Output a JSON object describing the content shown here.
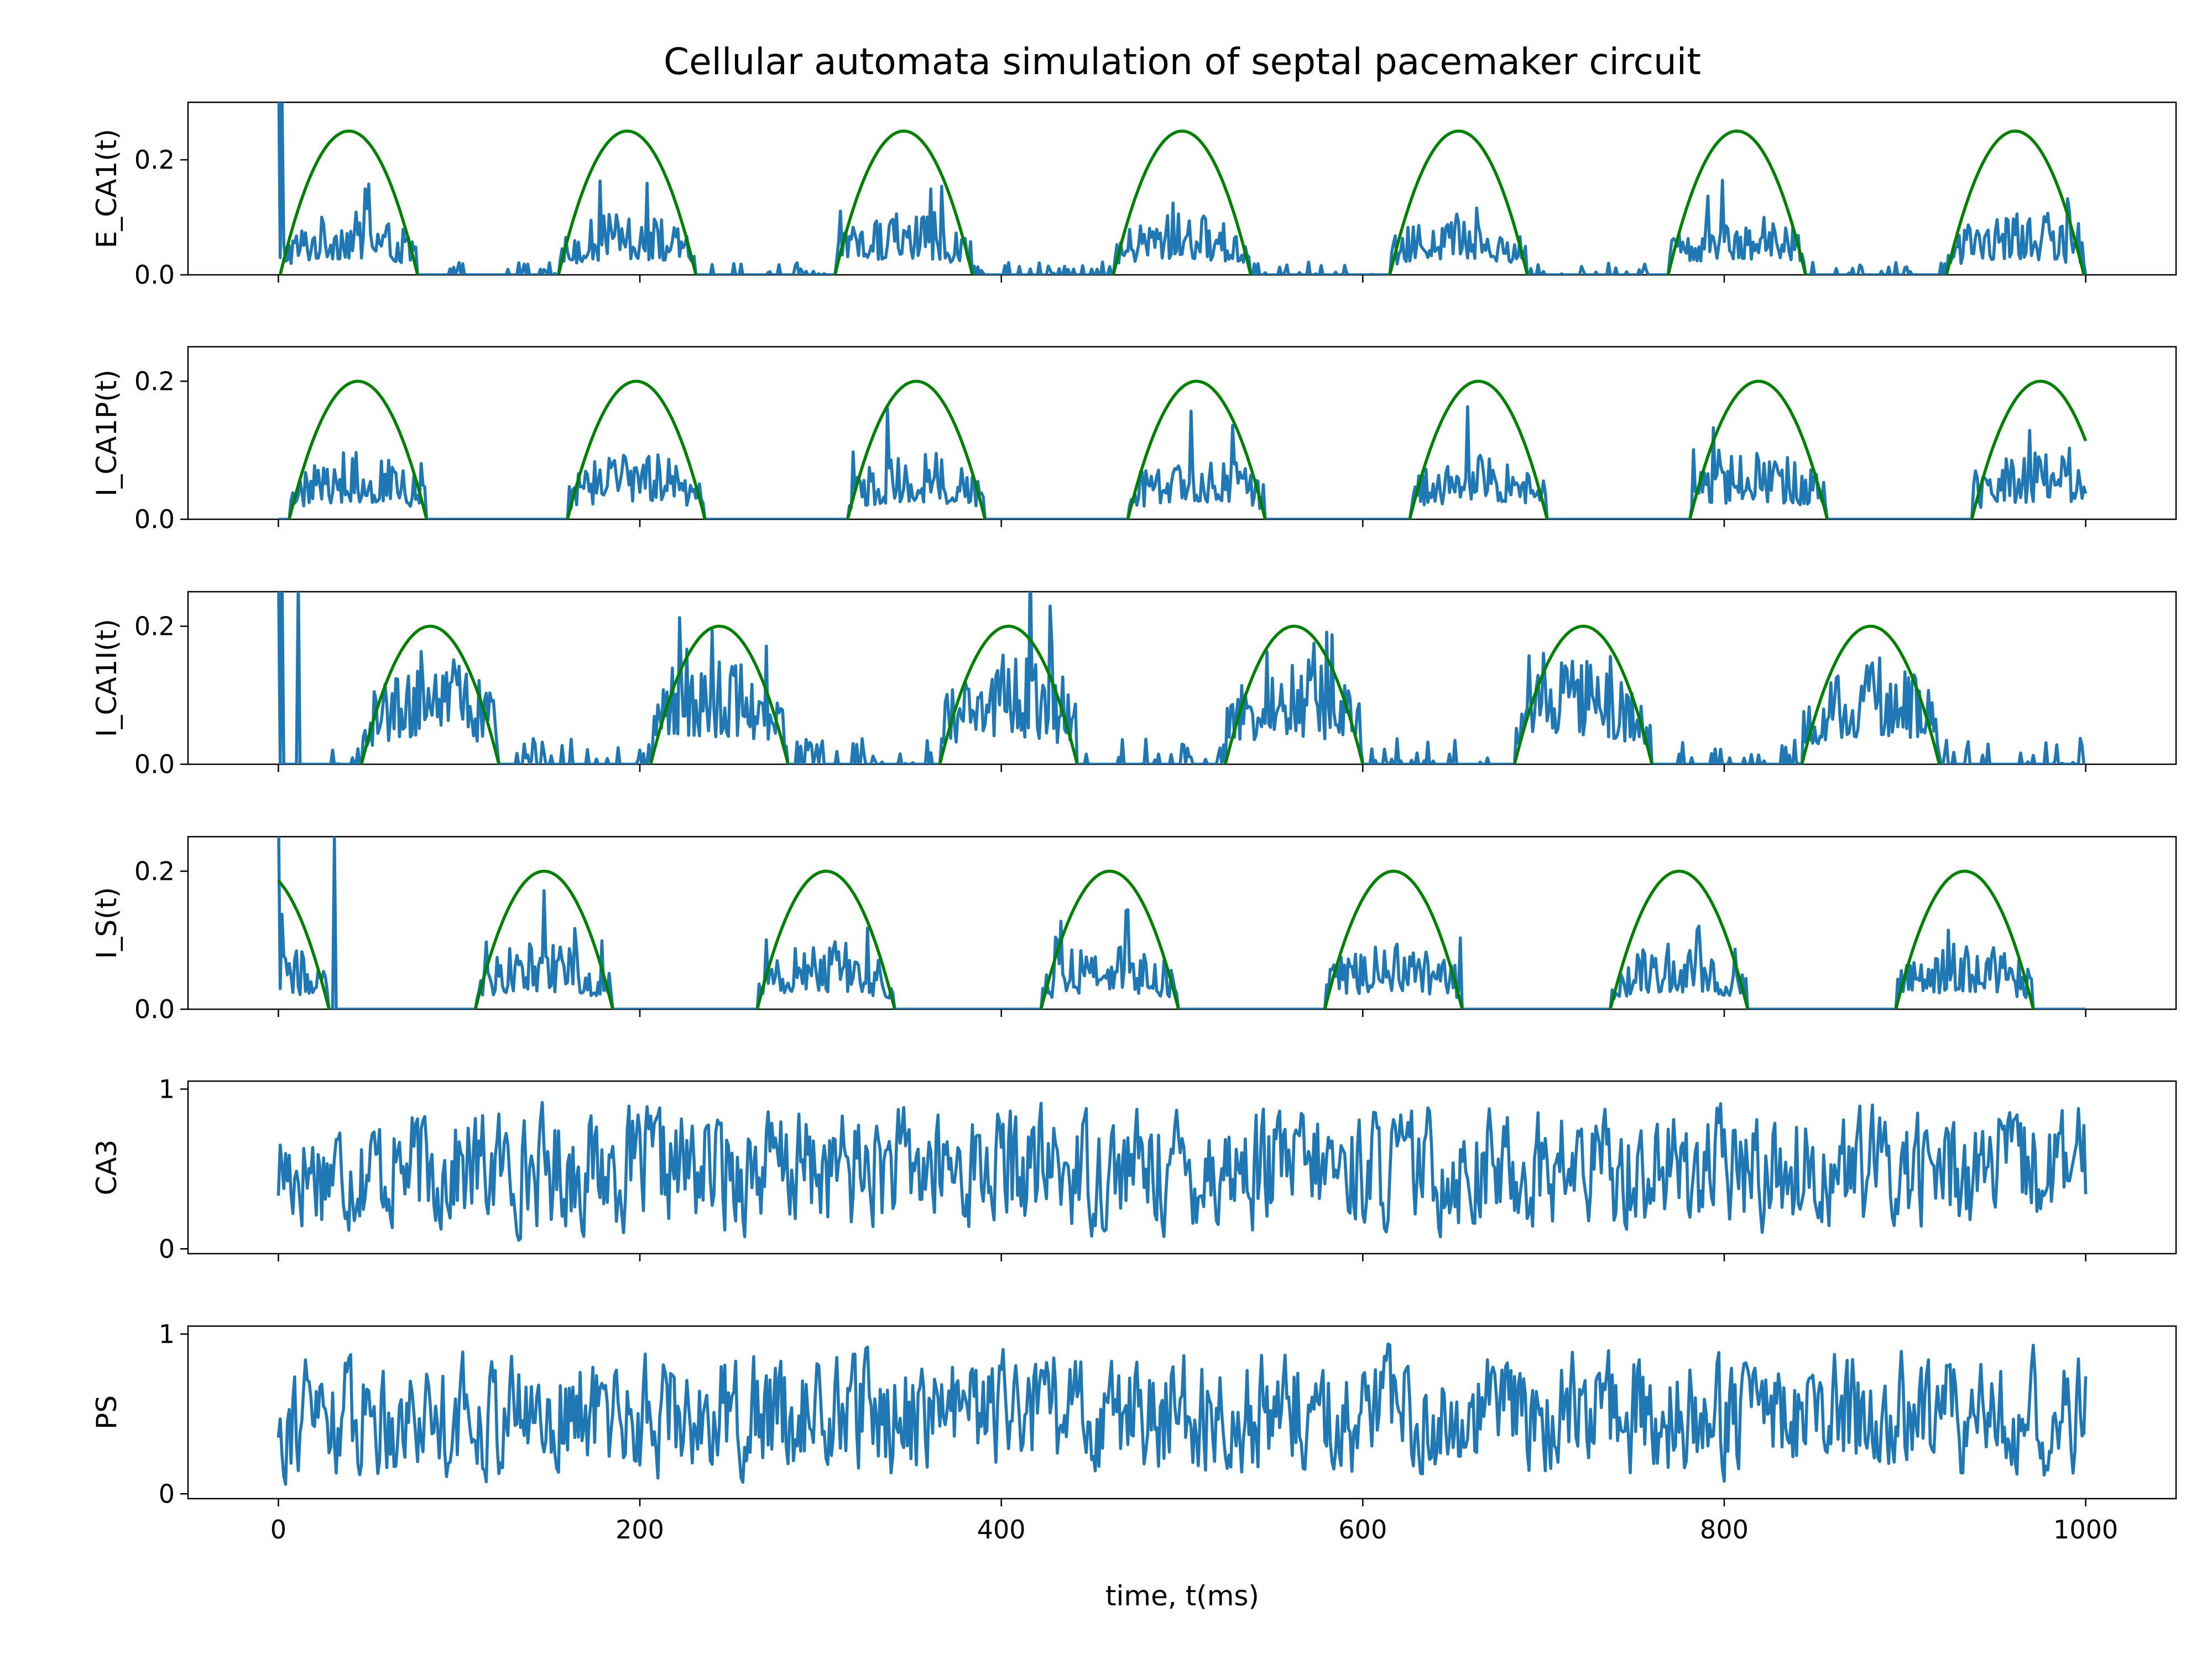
{
  "chart_data": {
    "type": "line",
    "title": "Cellular automata simulation of septal pacemaker circuit",
    "xlabel": "time, t(ms)",
    "xlim": [
      -50,
      1050
    ],
    "xticks": [
      0,
      200,
      400,
      600,
      800,
      1000
    ],
    "xtick_labels": [
      "0",
      "200",
      "400",
      "600",
      "800",
      "1000"
    ],
    "grid": false,
    "colors": {
      "series": "#1f77b4",
      "envelope": "#008000"
    },
    "panels": [
      {
        "ylabel": "E_CA1(t)",
        "ylim": [
          0,
          0.3
        ],
        "yticks": [
          0,
          0.2
        ],
        "ytick_labels": [
          "0.0",
          "0.2"
        ],
        "envelope": {
          "amplitude": 0.25,
          "half_width": 38,
          "centers": [
            39,
            193,
            346,
            500,
            653,
            807,
            961
          ]
        },
        "noise": {
          "peak": 0.11,
          "floor": 0.015,
          "spikes": [
            [
              0,
              0.42
            ],
            [
              1,
              0.03
            ],
            [
              2,
              0.31
            ]
          ]
        }
      },
      {
        "ylabel": "I_CA1P(t)",
        "ylim": [
          0,
          0.25
        ],
        "yticks": [
          0,
          0.2
        ],
        "ytick_labels": [
          "0.0",
          "0.2"
        ],
        "envelope": {
          "amplitude": 0.2,
          "half_width": 38,
          "centers": [
            44,
            198,
            353,
            508,
            664,
            819,
            975
          ]
        },
        "noise": {
          "peak": 0.1,
          "floor": 0.0,
          "spikes": []
        }
      },
      {
        "ylabel": "I_CA1I(t)",
        "ylim": [
          0,
          0.25
        ],
        "yticks": [
          0,
          0.2
        ],
        "ytick_labels": [
          "0.0",
          "0.2"
        ],
        "envelope": {
          "amplitude": 0.2,
          "half_width": 38,
          "centers": [
            84,
            244,
            404,
            562,
            722,
            881
          ]
        },
        "noise": {
          "peak": 0.16,
          "floor": 0.025,
          "spikes": [
            [
              0,
              0.3
            ],
            [
              1,
              0.0
            ],
            [
              2,
              0.28
            ],
            [
              10,
              0.0
            ],
            [
              11,
              0.27
            ],
            [
              416,
              0.3
            ]
          ]
        }
      },
      {
        "ylabel": "I_S(t)",
        "ylim": [
          0,
          0.25
        ],
        "yticks": [
          0,
          0.2
        ],
        "ytick_labels": [
          "0.0",
          "0.2"
        ],
        "envelope": {
          "amplitude": 0.2,
          "half_width": 38,
          "centers": [
            -10,
            147,
            303,
            460,
            617,
            775,
            933
          ]
        },
        "noise": {
          "peak": 0.1,
          "floor": 0.0,
          "spikes": [
            [
              0,
              0.3
            ],
            [
              1,
              0.03
            ],
            [
              30,
              0.0
            ],
            [
              31,
              0.25
            ],
            [
              32,
              0.0
            ]
          ]
        }
      },
      {
        "ylabel": "CA3",
        "ylim": [
          -0.03,
          1.05
        ],
        "yticks": [
          0,
          1
        ],
        "ytick_labels": [
          "0",
          "1"
        ],
        "random": {
          "min": 0.0,
          "max": 1.0,
          "seed": 17
        }
      },
      {
        "ylabel": "PS",
        "ylim": [
          -0.03,
          1.05
        ],
        "yticks": [
          0,
          1
        ],
        "ytick_labels": [
          "0",
          "1"
        ],
        "random": {
          "min": 0.0,
          "max": 1.0,
          "seed": 91
        }
      }
    ]
  }
}
